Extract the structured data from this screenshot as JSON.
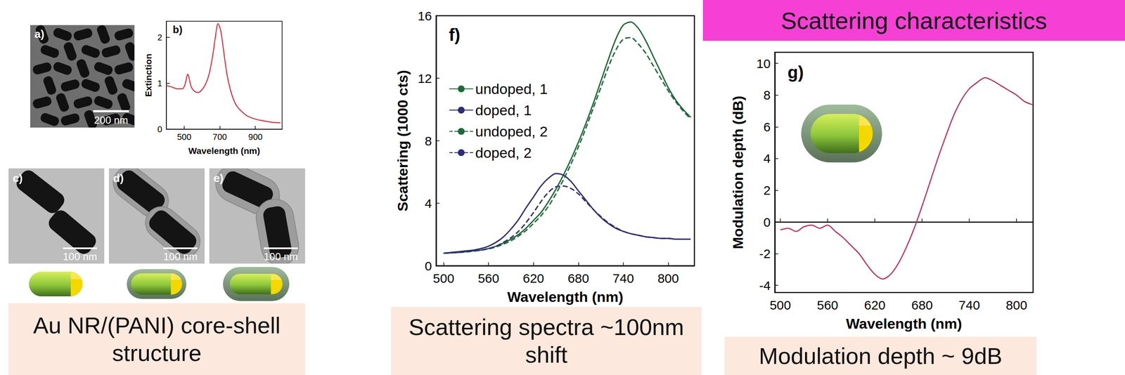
{
  "page": {
    "header": "Scattering characteristics",
    "captions": [
      "Au NR/(PANI) core-shell structure",
      "Scattering spectra ~100nm shift",
      "Modulation depth ~ 9dB"
    ],
    "images": [
      {
        "label": "a)",
        "scale_bar": "200 nm"
      },
      {
        "label": "c)",
        "scale_bar": "100 nm"
      },
      {
        "label": "d)",
        "scale_bar": "100 nm"
      },
      {
        "label": "e)",
        "scale_bar": "100 nm"
      }
    ]
  },
  "chart_data": [
    {
      "type": "line",
      "title": "b)",
      "xlabel": "Wavelength (nm)",
      "ylabel": "Extinction",
      "x": [
        400,
        430,
        460,
        490,
        505,
        515,
        520,
        527,
        540,
        560,
        580,
        600,
        620,
        640,
        660,
        675,
        690,
        705,
        720,
        740,
        760,
        780,
        800,
        850,
        900,
        950,
        1000,
        1040
      ],
      "values": [
        0.95,
        0.92,
        0.88,
        0.88,
        0.98,
        1.15,
        1.2,
        1.12,
        0.92,
        0.82,
        0.8,
        0.86,
        0.98,
        1.2,
        1.6,
        2.0,
        2.3,
        2.15,
        1.75,
        1.2,
        0.85,
        0.62,
        0.48,
        0.3,
        0.22,
        0.18,
        0.15,
        0.14
      ],
      "color": "#e8202f",
      "line_style": "solid",
      "xlim": [
        400,
        1050
      ],
      "xticks": [
        500,
        700,
        900
      ],
      "ylim": [
        0,
        2.35
      ],
      "yticks": [
        0,
        1,
        2
      ],
      "grid": false
    },
    {
      "type": "line",
      "title": "f)",
      "xlabel": "Wavelength (nm)",
      "ylabel": "Scattering (1000 cts)",
      "x": [
        500,
        510,
        520,
        530,
        540,
        550,
        560,
        570,
        580,
        590,
        600,
        610,
        620,
        630,
        640,
        650,
        660,
        670,
        680,
        690,
        700,
        710,
        720,
        730,
        740,
        750,
        760,
        770,
        780,
        790,
        800,
        810,
        820,
        830
      ],
      "series": [
        {
          "name": "undoped, 1",
          "color": "#1c6a36",
          "line_style": "solid",
          "values": [
            0.8,
            0.82,
            0.85,
            0.9,
            0.95,
            1.0,
            1.1,
            1.25,
            1.45,
            1.7,
            2.0,
            2.4,
            2.9,
            3.4,
            4.1,
            4.9,
            5.8,
            6.8,
            7.9,
            9.1,
            10.4,
            11.8,
            13.2,
            14.5,
            15.4,
            15.6,
            15.2,
            14.4,
            13.4,
            12.4,
            11.4,
            10.6,
            10.0,
            9.5
          ]
        },
        {
          "name": "doped, 1",
          "color": "#2f2c78",
          "line_style": "solid",
          "values": [
            0.8,
            0.85,
            0.9,
            0.95,
            1.0,
            1.1,
            1.25,
            1.5,
            1.85,
            2.35,
            2.95,
            3.7,
            4.4,
            5.1,
            5.6,
            5.9,
            5.8,
            5.4,
            4.8,
            4.2,
            3.6,
            3.1,
            2.7,
            2.4,
            2.2,
            2.05,
            1.95,
            1.85,
            1.8,
            1.75,
            1.75,
            1.7,
            1.7,
            1.7
          ]
        },
        {
          "name": "undoped, 2",
          "color": "#1c6a36",
          "line_style": "dashed",
          "values": [
            0.8,
            0.82,
            0.85,
            0.88,
            0.93,
            1.0,
            1.08,
            1.2,
            1.38,
            1.6,
            1.9,
            2.25,
            2.7,
            3.2,
            3.8,
            4.6,
            5.5,
            6.5,
            7.6,
            8.8,
            10.1,
            11.4,
            12.7,
            13.8,
            14.5,
            14.6,
            14.2,
            13.6,
            12.8,
            12.0,
            11.2,
            10.5,
            9.9,
            9.4
          ]
        },
        {
          "name": "doped, 2",
          "color": "#2f2c78",
          "line_style": "dashed",
          "values": [
            0.8,
            0.82,
            0.85,
            0.9,
            0.95,
            1.0,
            1.1,
            1.25,
            1.5,
            1.8,
            2.2,
            2.75,
            3.4,
            4.1,
            4.7,
            5.05,
            5.1,
            4.95,
            4.6,
            4.1,
            3.6,
            3.15,
            2.75,
            2.45,
            2.2,
            2.05,
            1.95,
            1.85,
            1.8,
            1.75,
            1.75,
            1.7,
            1.7,
            1.7
          ]
        }
      ],
      "xlim": [
        490,
        835
      ],
      "xticks": [
        500,
        560,
        620,
        680,
        740,
        800
      ],
      "ylim": [
        0,
        16
      ],
      "yticks": [
        0,
        4,
        8,
        12,
        16
      ],
      "grid": false,
      "legend": "upper left"
    },
    {
      "type": "line",
      "title": "g)",
      "xlabel": "Wavelength (nm)",
      "ylabel": "Modulation depth (dB)",
      "x": [
        500,
        510,
        520,
        530,
        540,
        550,
        560,
        570,
        580,
        590,
        600,
        610,
        620,
        630,
        640,
        650,
        660,
        670,
        680,
        690,
        700,
        710,
        720,
        730,
        740,
        750,
        760,
        770,
        780,
        790,
        800,
        810,
        820
      ],
      "values": [
        -0.5,
        -0.4,
        -0.6,
        -0.3,
        -0.2,
        -0.4,
        -0.2,
        -0.6,
        -1.0,
        -1.5,
        -2.0,
        -2.7,
        -3.3,
        -3.6,
        -3.3,
        -2.6,
        -1.6,
        -0.4,
        1.0,
        2.5,
        4.0,
        5.4,
        6.7,
        7.7,
        8.4,
        8.8,
        9.1,
        8.9,
        8.6,
        8.3,
        8.0,
        7.6,
        7.4
      ],
      "color": "#cc2255",
      "line_style": "solid",
      "xlim": [
        493,
        821
      ],
      "xticks": [
        500,
        560,
        620,
        680,
        740,
        800
      ],
      "ylim": [
        -4.45,
        10.7
      ],
      "yticks": [
        -4,
        -2,
        0,
        2,
        4,
        6,
        8,
        10
      ],
      "grid": false
    }
  ]
}
